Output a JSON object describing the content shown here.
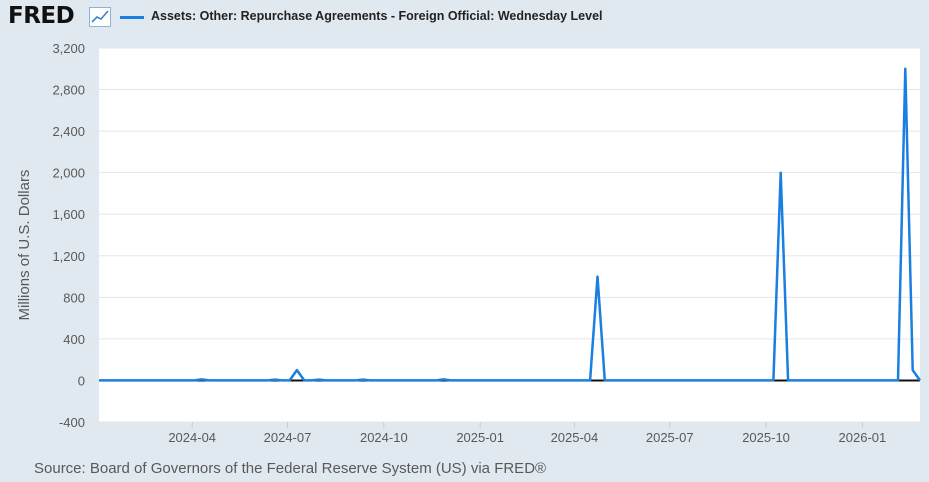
{
  "header": {
    "logo_text": "FRED",
    "logo_icon": "line-graph-icon",
    "series_title": "Assets: Other: Repurchase Agreements - Foreign Official: Wednesday Level"
  },
  "source_note": "Source: Board of Governors of the Federal Reserve System (US) via FRED®",
  "colors": {
    "background": "#e1e9f0",
    "plot_background": "#ffffff",
    "series_line": "#1a7fe0",
    "grid": "#e6e6e6",
    "zero_line": "#111111"
  },
  "chart_data": {
    "type": "line",
    "title": "Assets: Other: Repurchase Agreements - Foreign Official: Wednesday Level",
    "xlabel": "",
    "ylabel": "Millions of U.S. Dollars",
    "ylim": [
      -400,
      3200
    ],
    "yticks": [
      -400,
      0,
      400,
      800,
      1200,
      1600,
      2000,
      2400,
      2800,
      3200
    ],
    "ytick_labels": [
      "-400",
      "0",
      "400",
      "800",
      "1,200",
      "1,600",
      "2,000",
      "2,400",
      "2,800",
      "3,200"
    ],
    "xlim": [
      "2024-01-03",
      "2026-02-25"
    ],
    "xticks": [
      "2024-04-01",
      "2024-07-01",
      "2024-10-01",
      "2025-01-01",
      "2025-04-01",
      "2025-07-01",
      "2025-10-01",
      "2026-01-01"
    ],
    "xtick_labels": [
      "2024-04",
      "2024-07",
      "2024-10",
      "2025-01",
      "2025-04",
      "2025-07",
      "2025-10",
      "2026-01"
    ],
    "grid": true,
    "legend": "top-left",
    "series": [
      {
        "name": "Assets: Other: Repurchase Agreements - Foreign Official: Wednesday Level",
        "x": [
          "2024-01-03",
          "2024-04-03",
          "2024-04-10",
          "2024-04-17",
          "2024-06-12",
          "2024-06-19",
          "2024-06-26",
          "2024-07-03",
          "2024-07-10",
          "2024-07-17",
          "2024-07-24",
          "2024-07-31",
          "2024-08-07",
          "2024-09-04",
          "2024-09-11",
          "2024-09-18",
          "2024-11-20",
          "2024-11-27",
          "2024-12-04",
          "2025-04-16",
          "2025-04-23",
          "2025-04-30",
          "2025-10-08",
          "2025-10-15",
          "2025-10-22",
          "2026-02-04",
          "2026-02-11",
          "2026-02-18",
          "2026-02-25"
        ],
        "y": [
          0,
          0,
          10,
          0,
          0,
          8,
          0,
          0,
          100,
          0,
          0,
          8,
          0,
          0,
          8,
          0,
          0,
          10,
          0,
          0,
          1000,
          0,
          0,
          2000,
          0,
          0,
          3000,
          100,
          0
        ]
      }
    ]
  }
}
